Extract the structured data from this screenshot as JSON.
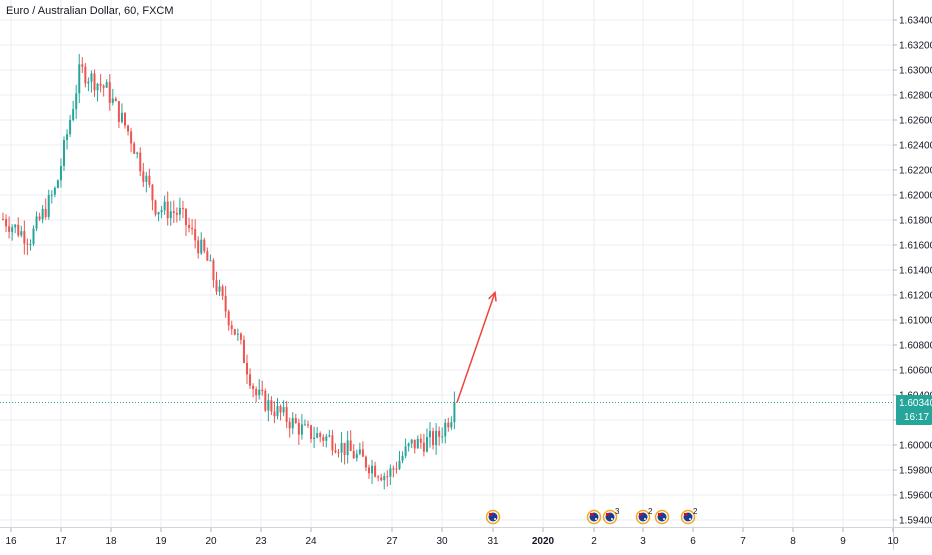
{
  "header": {
    "symbol_title": "Euro / Australian Dollar, 60, FXCM"
  },
  "colors": {
    "up": "#26a69a",
    "down": "#ef5350",
    "grid": "#e9edf4",
    "axis_text": "#131722",
    "price_line": "#26a69a",
    "price_tag": "#26a69a",
    "arrow": "#f0443a",
    "event_ring": "#f5a623"
  },
  "price_tag": {
    "price": "1.60340",
    "countdown": "16:17"
  },
  "events": [
    {
      "icon": "au-flag-icon",
      "count": ""
    },
    {
      "icon": "au-flag-icon",
      "count": ""
    },
    {
      "icon": "moon-flag-icon",
      "count": "3"
    },
    {
      "icon": "au-flag-icon",
      "count": "2"
    },
    {
      "icon": "globe-flag-icon",
      "count": ""
    },
    {
      "icon": "au-flag-icon",
      "count": "2"
    }
  ],
  "chart_data": {
    "type": "candlestick",
    "title": "Euro / Australian Dollar, 60, FXCM",
    "y_tick_labels": [
      "1.63400",
      "1.63200",
      "1.63000",
      "1.62800",
      "1.62600",
      "1.62400",
      "1.62200",
      "1.62000",
      "1.61800",
      "1.61600",
      "1.61400",
      "1.61200",
      "1.61000",
      "1.60800",
      "1.60600",
      "1.60400",
      "1.60200",
      "1.60000",
      "1.59800",
      "1.59600",
      "1.59400"
    ],
    "ylim": [
      1.5938,
      1.6345
    ],
    "x_tick_labels": [
      "16",
      "17",
      "18",
      "19",
      "20",
      "23",
      "24",
      "27",
      "30",
      "31",
      "2020",
      "2",
      "3",
      "6",
      "7",
      "8",
      "9",
      "10"
    ],
    "last_price": 1.6034,
    "price_path": [
      {
        "date": "16",
        "price": 1.6182
      },
      {
        "date": "16",
        "price": 1.6165
      },
      {
        "date": "17",
        "price": 1.6205
      },
      {
        "date": "17",
        "price": 1.63
      },
      {
        "date": "18",
        "price": 1.6285
      },
      {
        "date": "18",
        "price": 1.6248
      },
      {
        "date": "19",
        "price": 1.619
      },
      {
        "date": "19",
        "price": 1.6185
      },
      {
        "date": "20",
        "price": 1.615
      },
      {
        "date": "20",
        "price": 1.6115
      },
      {
        "date": "20",
        "price": 1.6085
      },
      {
        "date": "23",
        "price": 1.604
      },
      {
        "date": "23",
        "price": 1.6025
      },
      {
        "date": "24",
        "price": 1.601
      },
      {
        "date": "24",
        "price": 1.6005
      },
      {
        "date": "27",
        "price": 1.5975
      },
      {
        "date": "27",
        "price": 1.6
      },
      {
        "date": "30",
        "price": 1.6005
      },
      {
        "date": "30",
        "price": 1.6034
      }
    ],
    "projection_arrow": {
      "from": {
        "date": "30",
        "price": 1.6034
      },
      "to": {
        "date": "31",
        "price": 1.6122
      }
    },
    "grid": true,
    "legend": "none"
  }
}
